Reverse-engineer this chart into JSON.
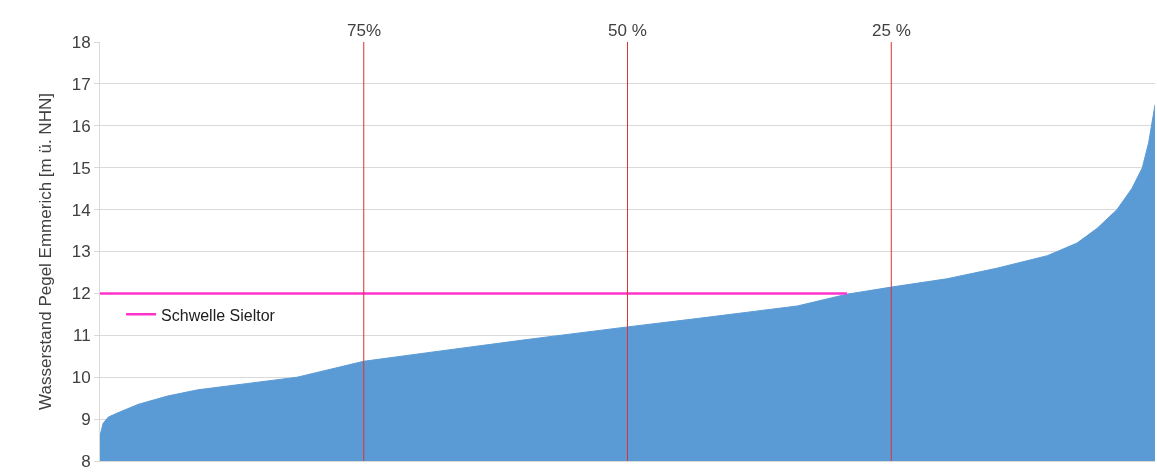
{
  "chart_data": {
    "type": "area",
    "ylabel": "Wasserstand Pegel Emmerich [m ü. NHN]",
    "xlim": [
      100,
      0
    ],
    "ylim": [
      8,
      18
    ],
    "yticks": [
      8,
      9,
      10,
      11,
      12,
      13,
      14,
      15,
      16,
      17,
      18
    ],
    "grid": "y",
    "tick_labels": "y",
    "legend": "left",
    "series": [
      {
        "color": "#5b9bd5",
        "x": [
          100,
          99.7,
          99.2,
          98.3,
          96.4,
          93.6,
          90.7,
          86.0,
          81.3,
          75,
          67.0,
          59.5,
          50,
          43.4,
          33.9,
          29.2,
          25,
          19.7,
          15.0,
          10.2,
          7.4,
          5.5,
          3.6,
          2.2,
          1.2,
          0.6,
          0
        ],
        "values": [
          8.6,
          8.9,
          9.05,
          9.15,
          9.35,
          9.55,
          9.7,
          9.85,
          10.0,
          10.38,
          10.65,
          10.9,
          11.2,
          11.4,
          11.7,
          11.98,
          12.15,
          12.35,
          12.6,
          12.9,
          13.2,
          13.55,
          14.0,
          14.5,
          15.0,
          15.6,
          16.5
        ]
      },
      {
        "type": "line",
        "name": "Schwelle Sieltor",
        "color": "#ff33cc",
        "x": [
          100,
          29.2
        ],
        "values": [
          12,
          12
        ]
      }
    ],
    "ref_lines": [
      {
        "axis": "x",
        "value": 75,
        "label": "75%",
        "color": "#e03030"
      },
      {
        "axis": "x",
        "value": 50,
        "label": "50 %",
        "color": "#e03030"
      },
      {
        "axis": "x",
        "value": 25,
        "label": "25 %",
        "color": "#e03030"
      }
    ]
  }
}
